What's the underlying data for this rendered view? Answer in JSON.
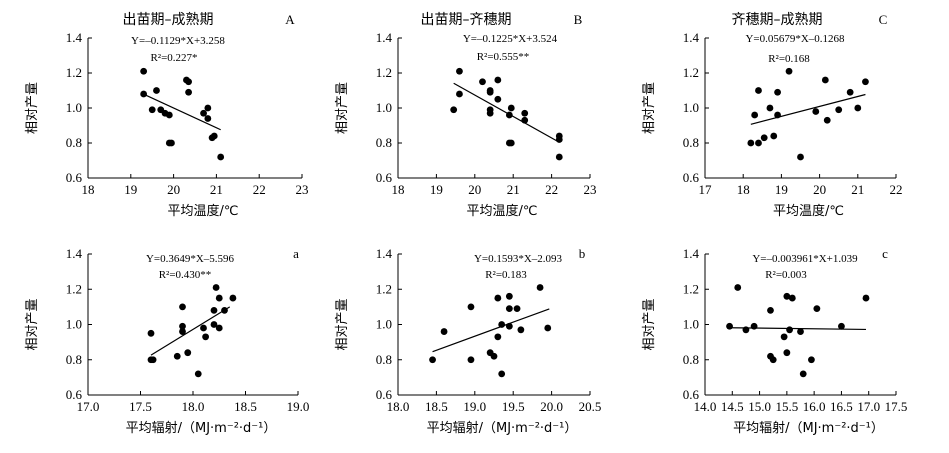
{
  "chart_data": [
    {
      "type": "scatter",
      "title": "出苗期–成熟期",
      "panel_label": "A",
      "equation": "Y=–0.1129*X+3.258",
      "r2": "R²=0.227*",
      "xlabel": "平均温度/℃",
      "ylabel": "相对产量",
      "xlim": [
        18,
        23
      ],
      "ylim": [
        0.6,
        1.4
      ],
      "xticks": [
        "18",
        "19",
        "20",
        "21",
        "22",
        "23"
      ],
      "yticks": [
        "0.6",
        "0.8",
        "1.0",
        "1.2",
        "1.4"
      ],
      "fit": {
        "slope": -0.1129,
        "intercept": 3.258,
        "x_range": [
          19.3,
          21.1
        ]
      },
      "points": [
        [
          19.3,
          1.21
        ],
        [
          19.3,
          1.08
        ],
        [
          19.5,
          0.99
        ],
        [
          19.6,
          1.1
        ],
        [
          19.7,
          0.99
        ],
        [
          19.8,
          0.97
        ],
        [
          19.9,
          0.8
        ],
        [
          19.95,
          0.8
        ],
        [
          19.9,
          0.96
        ],
        [
          20.3,
          1.16
        ],
        [
          20.35,
          1.15
        ],
        [
          20.35,
          1.09
        ],
        [
          20.7,
          0.97
        ],
        [
          20.8,
          1.0
        ],
        [
          20.8,
          0.94
        ],
        [
          20.9,
          0.83
        ],
        [
          20.95,
          0.84
        ],
        [
          21.1,
          0.72
        ]
      ]
    },
    {
      "type": "scatter",
      "title": "出苗期–齐穗期",
      "panel_label": "B",
      "equation": "Y=–0.1225*X+3.524",
      "r2": "R²=0.555**",
      "xlabel": "平均温度/℃",
      "ylabel": "相对产量",
      "xlim": [
        18,
        23
      ],
      "ylim": [
        0.6,
        1.4
      ],
      "xticks": [
        "18",
        "19",
        "20",
        "21",
        "22",
        "23"
      ],
      "yticks": [
        "0.6",
        "0.8",
        "1.0",
        "1.2",
        "1.4"
      ],
      "fit": {
        "slope": -0.1225,
        "intercept": 3.524,
        "x_range": [
          19.45,
          22.2
        ]
      },
      "points": [
        [
          19.45,
          0.99
        ],
        [
          19.6,
          1.21
        ],
        [
          19.6,
          1.08
        ],
        [
          20.2,
          1.15
        ],
        [
          20.4,
          1.1
        ],
        [
          20.4,
          1.09
        ],
        [
          20.4,
          0.99
        ],
        [
          20.4,
          0.97
        ],
        [
          20.6,
          1.16
        ],
        [
          20.6,
          1.05
        ],
        [
          20.9,
          0.96
        ],
        [
          20.95,
          1.0
        ],
        [
          20.9,
          0.8
        ],
        [
          20.95,
          0.8
        ],
        [
          21.3,
          0.97
        ],
        [
          21.3,
          0.93
        ],
        [
          22.2,
          0.84
        ],
        [
          22.2,
          0.82
        ],
        [
          22.2,
          0.72
        ]
      ]
    },
    {
      "type": "scatter",
      "title": "齐穗期–成熟期",
      "panel_label": "C",
      "equation": "Y=0.05679*X–0.1268",
      "r2": "R²=0.168",
      "xlabel": "平均温度/℃",
      "ylabel": "相对产量",
      "xlim": [
        17,
        22
      ],
      "ylim": [
        0.6,
        1.4
      ],
      "xticks": [
        "17",
        "18",
        "19",
        "20",
        "21",
        "22"
      ],
      "yticks": [
        "0.6",
        "0.8",
        "1.0",
        "1.2",
        "1.4"
      ],
      "fit": {
        "slope": 0.05679,
        "intercept": -0.1268,
        "x_range": [
          18.2,
          21.2
        ]
      },
      "points": [
        [
          18.2,
          0.8
        ],
        [
          18.3,
          0.96
        ],
        [
          18.4,
          1.1
        ],
        [
          18.4,
          0.8
        ],
        [
          18.55,
          0.83
        ],
        [
          18.7,
          1.0
        ],
        [
          18.8,
          0.84
        ],
        [
          18.9,
          1.09
        ],
        [
          18.9,
          0.96
        ],
        [
          19.2,
          1.21
        ],
        [
          19.5,
          0.72
        ],
        [
          19.9,
          0.98
        ],
        [
          20.15,
          1.16
        ],
        [
          20.2,
          0.93
        ],
        [
          20.5,
          0.99
        ],
        [
          20.8,
          1.09
        ],
        [
          21.0,
          1.0
        ],
        [
          21.2,
          1.15
        ]
      ]
    },
    {
      "type": "scatter",
      "title": "",
      "panel_label": "a",
      "equation": "Y=0.3649*X–5.596",
      "r2": "R²=0.430**",
      "xlabel": "平均辐射/（MJ·m⁻²·d⁻¹）",
      "ylabel": "相对产量",
      "xlim": [
        17.0,
        19.0
      ],
      "ylim": [
        0.6,
        1.4
      ],
      "xticks": [
        "17.0",
        "17.5",
        "18.0",
        "18.5",
        "19.0"
      ],
      "yticks": [
        "0.6",
        "0.8",
        "1.0",
        "1.2",
        "1.4"
      ],
      "fit": {
        "slope": 0.3649,
        "intercept": -5.596,
        "x_range": [
          17.6,
          18.35
        ]
      },
      "points": [
        [
          17.6,
          0.95
        ],
        [
          17.6,
          0.8
        ],
        [
          17.62,
          0.8
        ],
        [
          17.85,
          0.82
        ],
        [
          17.9,
          1.1
        ],
        [
          17.9,
          0.99
        ],
        [
          17.9,
          0.96
        ],
        [
          17.95,
          0.84
        ],
        [
          18.05,
          0.72
        ],
        [
          18.1,
          0.98
        ],
        [
          18.12,
          0.93
        ],
        [
          18.2,
          1.08
        ],
        [
          18.2,
          1.0
        ],
        [
          18.22,
          1.21
        ],
        [
          18.25,
          1.15
        ],
        [
          18.25,
          0.98
        ],
        [
          18.3,
          1.08
        ],
        [
          18.38,
          1.15
        ]
      ]
    },
    {
      "type": "scatter",
      "title": "",
      "panel_label": "b",
      "equation": "Y=0.1593*X–2.093",
      "r2": "R²=0.183",
      "xlabel": "平均辐射/（MJ·m⁻²·d⁻¹）",
      "ylabel": "相对产量",
      "xlim": [
        18.0,
        20.5
      ],
      "ylim": [
        0.6,
        1.4
      ],
      "xticks": [
        "18.0",
        "18.5",
        "19.0",
        "19.5",
        "20.0",
        "20.5"
      ],
      "yticks": [
        "0.6",
        "0.8",
        "1.0",
        "1.2",
        "1.4"
      ],
      "fit": {
        "slope": 0.1593,
        "intercept": -2.093,
        "x_range": [
          18.45,
          19.97
        ]
      },
      "points": [
        [
          18.45,
          0.8
        ],
        [
          18.6,
          0.96
        ],
        [
          18.95,
          1.1
        ],
        [
          18.95,
          0.8
        ],
        [
          19.2,
          0.84
        ],
        [
          19.25,
          0.82
        ],
        [
          19.3,
          1.15
        ],
        [
          19.3,
          0.93
        ],
        [
          19.35,
          1.0
        ],
        [
          19.35,
          0.72
        ],
        [
          19.45,
          1.16
        ],
        [
          19.45,
          1.09
        ],
        [
          19.45,
          0.99
        ],
        [
          19.55,
          1.09
        ],
        [
          19.6,
          0.97
        ],
        [
          19.85,
          1.21
        ],
        [
          19.95,
          0.98
        ]
      ]
    },
    {
      "type": "scatter",
      "title": "",
      "panel_label": "c",
      "equation": "Y=–0.003961*X+1.039",
      "r2": "R²=0.003",
      "xlabel": "平均辐射/（MJ·m⁻²·d⁻¹）",
      "ylabel": "相对产量",
      "xlim": [
        14.0,
        17.5
      ],
      "ylim": [
        0.6,
        1.4
      ],
      "xticks": [
        "14.0",
        "14.5",
        "15.0",
        "15.5",
        "16.0",
        "16.5",
        "17.0",
        "17.5"
      ],
      "yticks": [
        "0.6",
        "0.8",
        "1.0",
        "1.2",
        "1.4"
      ],
      "fit": {
        "slope": -0.003961,
        "intercept": 1.039,
        "x_range": [
          14.45,
          16.95
        ]
      },
      "points": [
        [
          14.45,
          0.99
        ],
        [
          14.6,
          1.21
        ],
        [
          14.75,
          0.97
        ],
        [
          14.9,
          0.99
        ],
        [
          15.2,
          1.08
        ],
        [
          15.2,
          0.82
        ],
        [
          15.25,
          0.8
        ],
        [
          15.45,
          0.93
        ],
        [
          15.5,
          1.16
        ],
        [
          15.55,
          0.97
        ],
        [
          15.5,
          0.84
        ],
        [
          15.6,
          1.15
        ],
        [
          15.75,
          0.96
        ],
        [
          15.8,
          0.72
        ],
        [
          15.95,
          0.8
        ],
        [
          16.05,
          1.09
        ],
        [
          16.5,
          0.99
        ],
        [
          16.95,
          1.15
        ]
      ]
    }
  ]
}
